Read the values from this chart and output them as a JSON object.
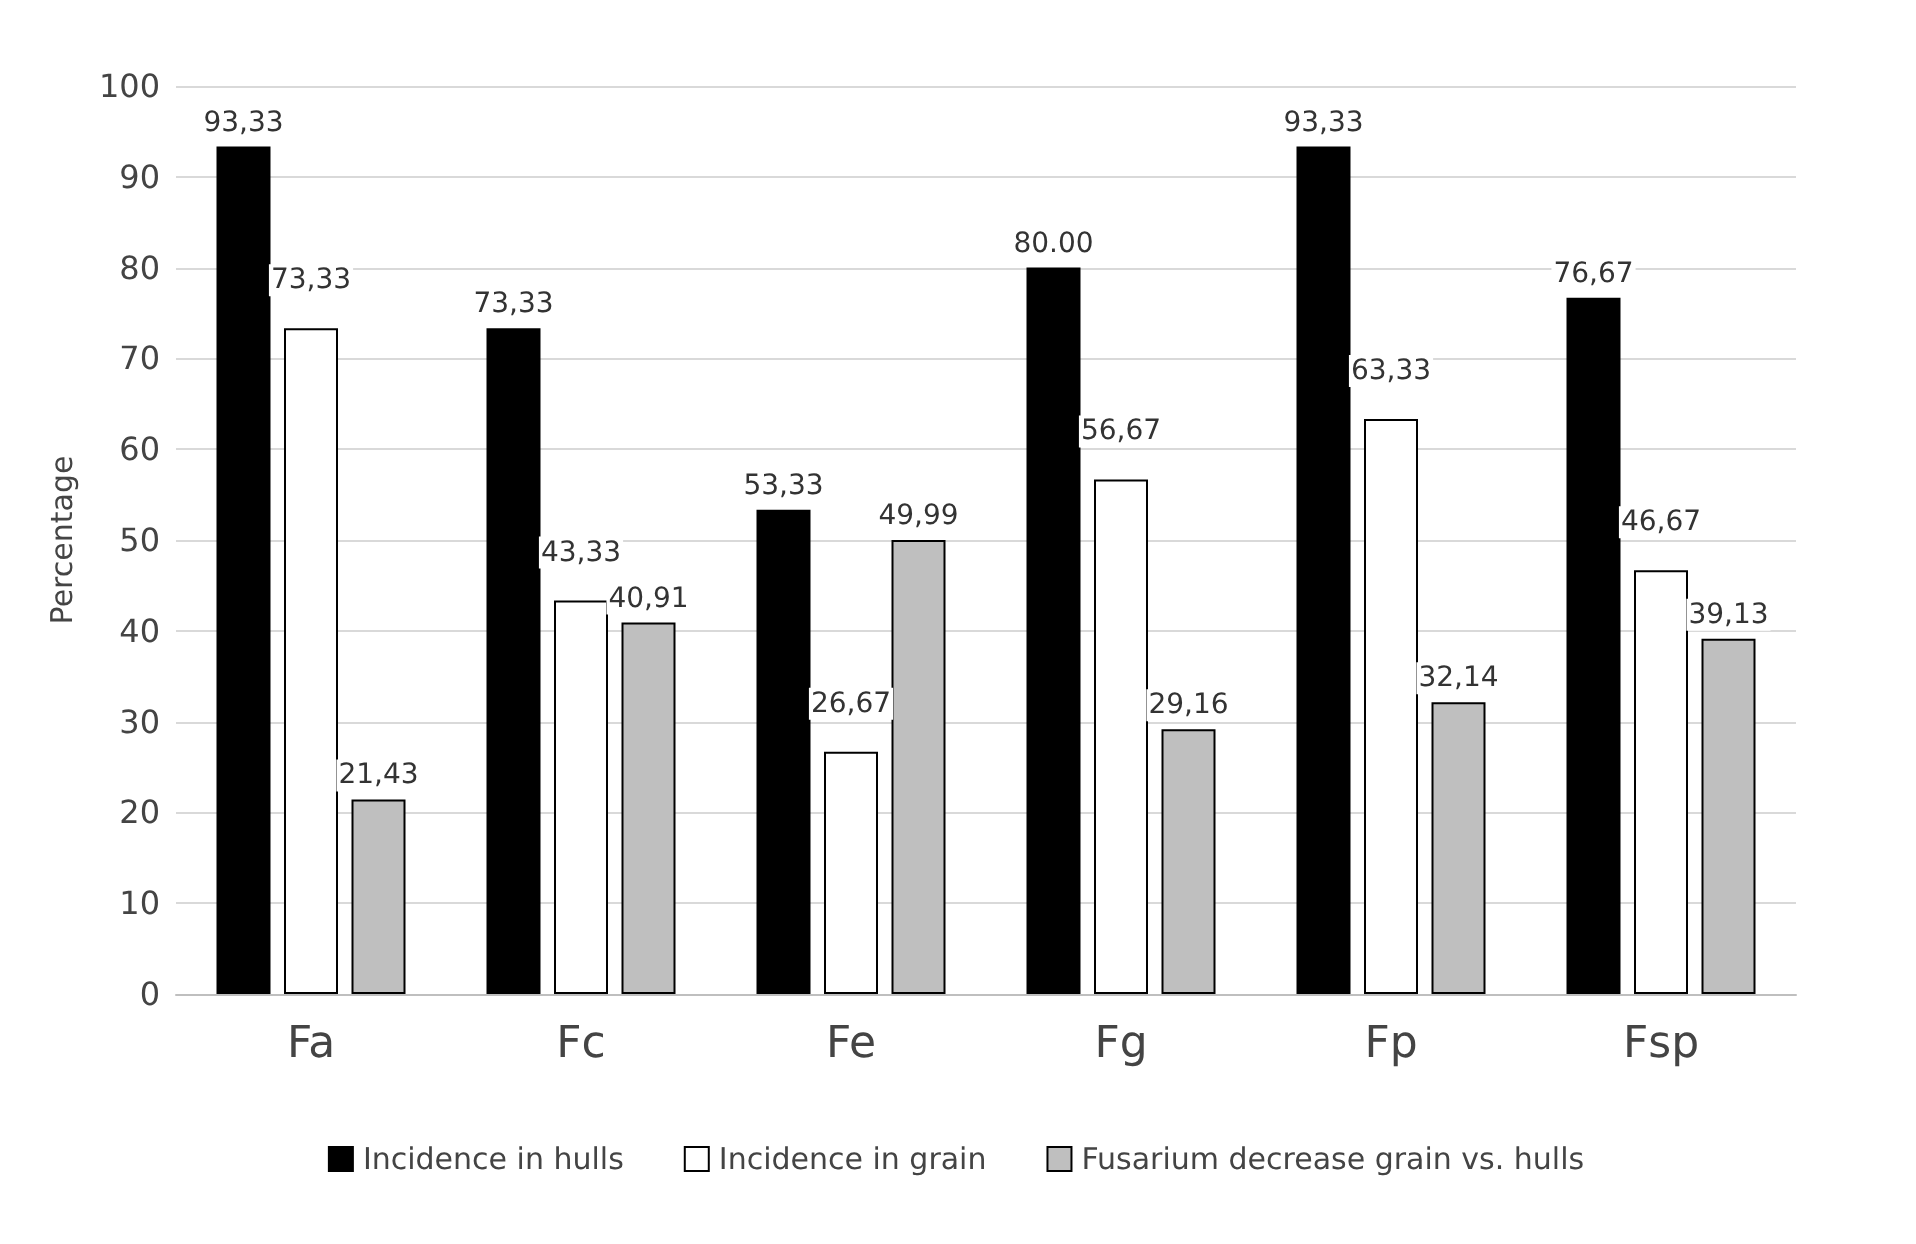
{
  "chart_data": {
    "type": "bar",
    "ylabel": "Percentage",
    "categories": [
      "Fa",
      "Fc",
      "Fe",
      "Fg",
      "Fp",
      "Fsp"
    ],
    "series": [
      {
        "name": "Incidence in hulls",
        "color": "#000000",
        "values": [
          93.33,
          73.33,
          53.33,
          80.0,
          93.33,
          76.67
        ],
        "value_labels": [
          "93,33",
          "73,33",
          "53,33",
          "80.00",
          "93,33",
          "76,67"
        ]
      },
      {
        "name": "Incidence in grain",
        "color": "#ffffff",
        "values": [
          73.33,
          43.33,
          26.67,
          56.67,
          63.33,
          46.67
        ],
        "value_labels": [
          "73,33",
          "43,33",
          "26,67",
          "56,67",
          "63,33",
          "46,67"
        ]
      },
      {
        "name": "Fusarium decrease grain vs. hulls",
        "color": "#bfbfbf",
        "values": [
          21.43,
          40.91,
          49.99,
          29.16,
          32.14,
          39.13
        ],
        "value_labels": [
          "21,43",
          "40,91",
          "49,99",
          "29,16",
          "32,14",
          "39,13"
        ]
      }
    ],
    "ylim": [
      0,
      100
    ],
    "yticks": [
      0,
      10,
      20,
      30,
      40,
      50,
      60,
      70,
      80,
      90,
      100
    ],
    "grid": "y",
    "legend": "bottom"
  }
}
